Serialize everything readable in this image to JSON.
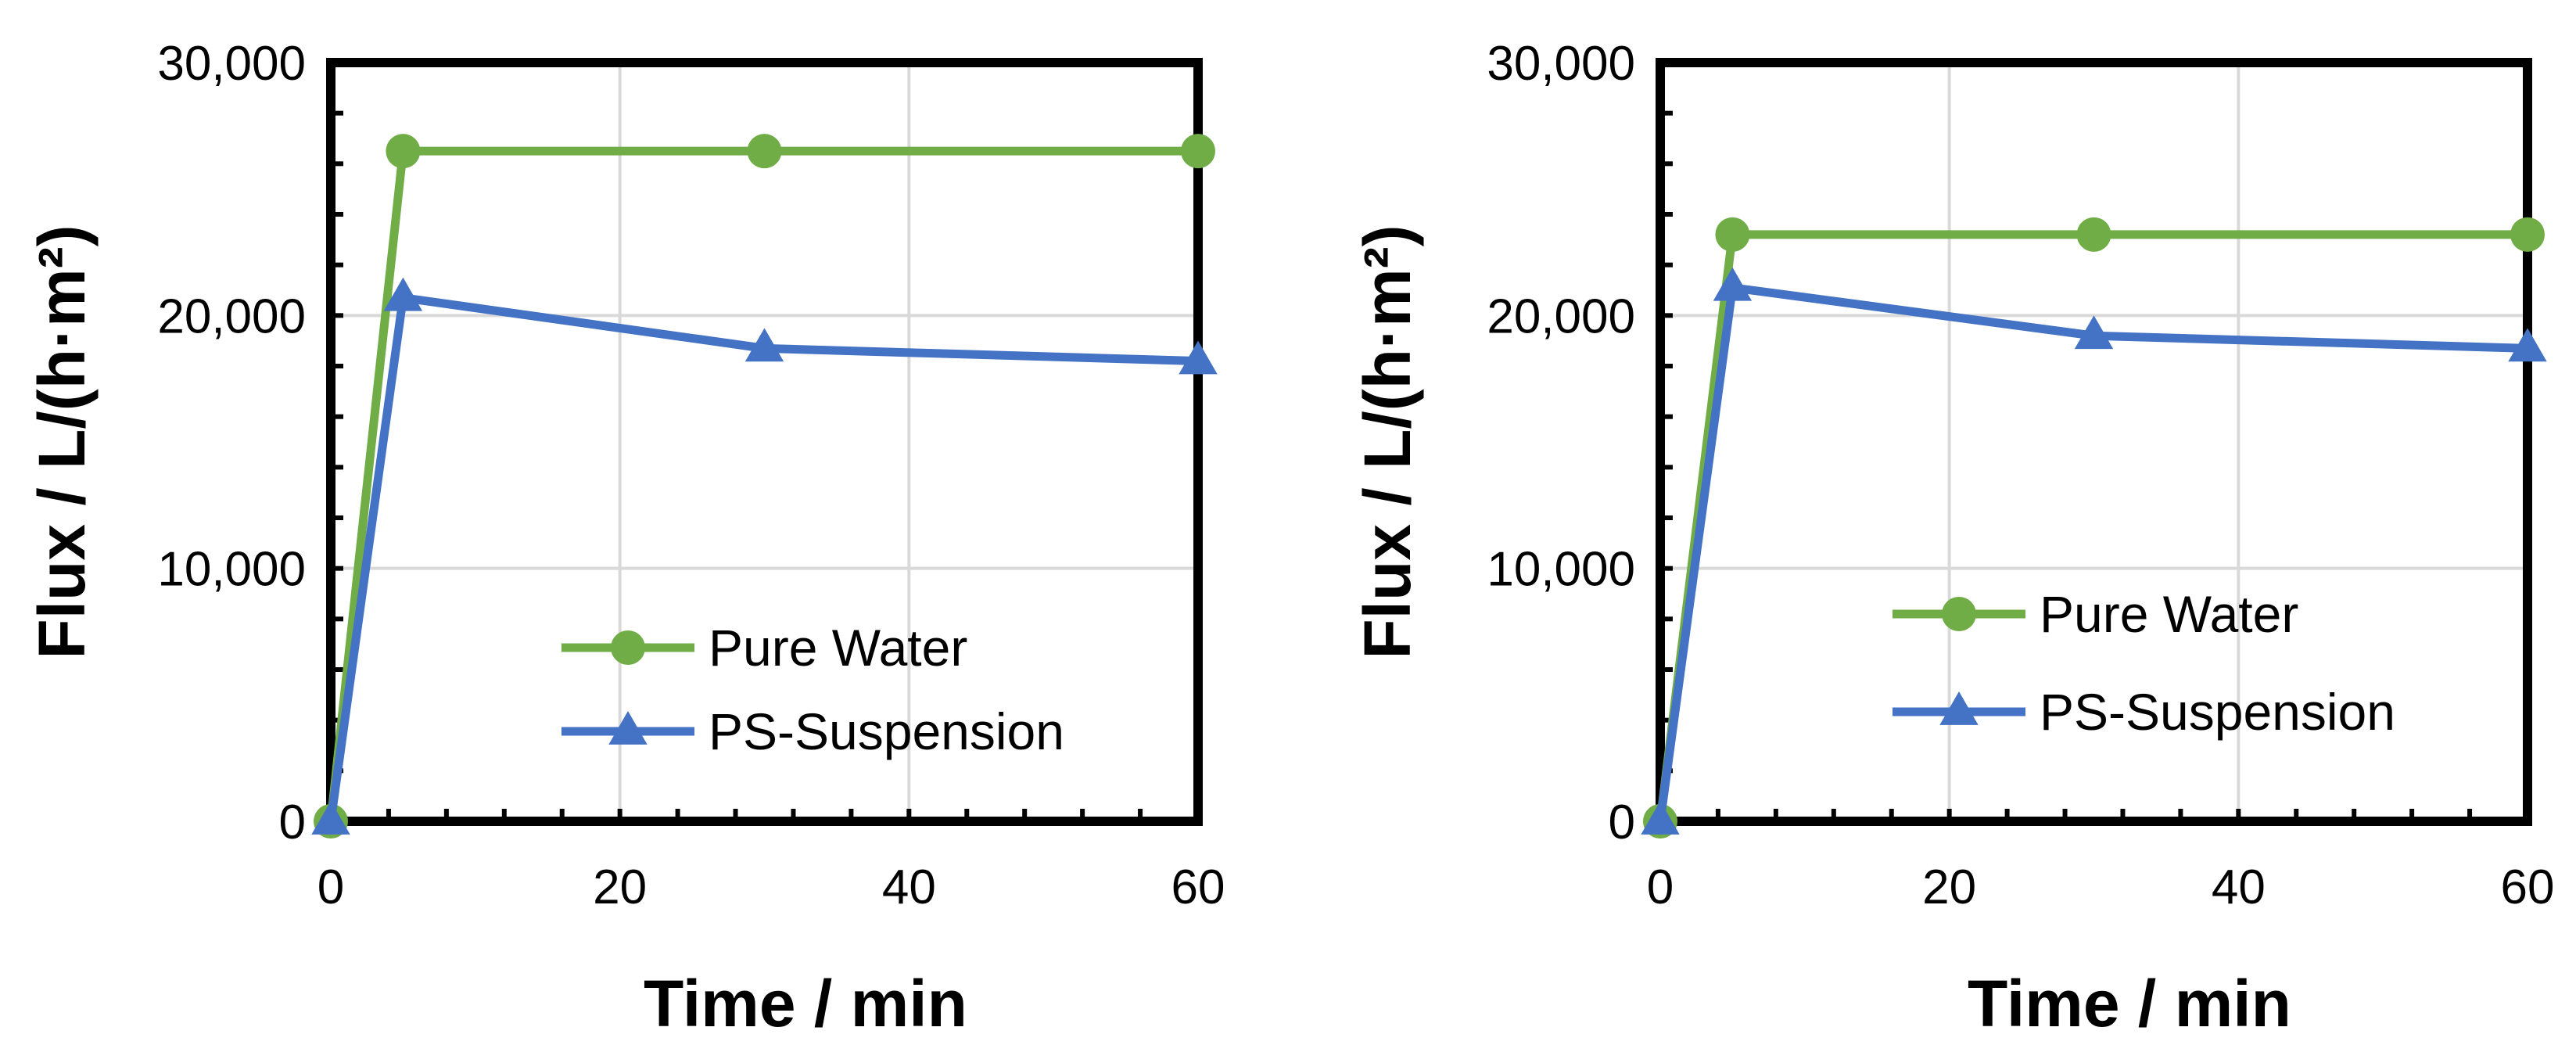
{
  "chart_data": [
    {
      "type": "line",
      "title": "",
      "xlabel": "Time / min",
      "ylabel": "Flux / L/(h·m²)",
      "xlim": [
        0,
        60
      ],
      "ylim": [
        0,
        30000
      ],
      "xticks": [
        0,
        20,
        40,
        60
      ],
      "xtick_labels": [
        "0",
        "20",
        "40",
        "60"
      ],
      "yticks": [
        0,
        10000,
        20000,
        30000
      ],
      "ytick_labels": [
        "0",
        "10,000",
        "20,000",
        "30,000"
      ],
      "grid": true,
      "legend_position": "lower-right",
      "series": [
        {
          "name": "Pure Water",
          "color": "#70AD47",
          "marker": "circle",
          "x": [
            0,
            5,
            30,
            60
          ],
          "y": [
            0,
            26500,
            26500,
            26500
          ]
        },
        {
          "name": "PS-Suspension",
          "color": "#4472C4",
          "marker": "triangle",
          "x": [
            0,
            5,
            30,
            60
          ],
          "y": [
            0,
            20700,
            18700,
            18200
          ]
        }
      ]
    },
    {
      "type": "line",
      "title": "",
      "xlabel": "Time / min",
      "ylabel": "Flux / L/(h·m²)",
      "xlim": [
        0,
        60
      ],
      "ylim": [
        0,
        30000
      ],
      "xticks": [
        0,
        20,
        40,
        60
      ],
      "xtick_labels": [
        "0",
        "20",
        "40",
        "60"
      ],
      "yticks": [
        0,
        10000,
        20000,
        30000
      ],
      "ytick_labels": [
        "0",
        "10,000",
        "20,000",
        "30,000"
      ],
      "grid": true,
      "legend_position": "lower-right",
      "series": [
        {
          "name": "Pure Water",
          "color": "#70AD47",
          "marker": "circle",
          "x": [
            0,
            5,
            30,
            60
          ],
          "y": [
            0,
            23200,
            23200,
            23200
          ]
        },
        {
          "name": "PS-Suspension",
          "color": "#4472C4",
          "marker": "triangle",
          "x": [
            0,
            5,
            30,
            60
          ],
          "y": [
            0,
            21100,
            19200,
            18700
          ]
        }
      ]
    }
  ]
}
